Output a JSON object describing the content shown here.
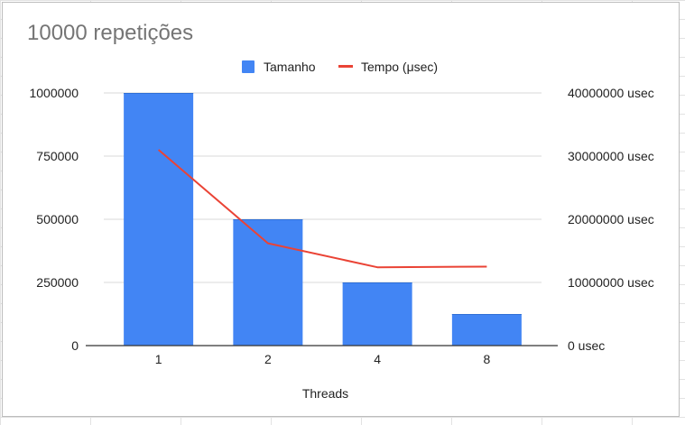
{
  "chart_data": {
    "type": "bar",
    "title": "10000 repetições",
    "xlabel": "Threads",
    "ylabel": "",
    "ylabel_right": "",
    "categories": [
      "1",
      "2",
      "4",
      "8"
    ],
    "series": [
      {
        "name": "Tamanho",
        "type": "bar",
        "axis": "left",
        "color": "#4285f4",
        "values": [
          1000000,
          500000,
          250000,
          125000
        ]
      },
      {
        "name": "Tempo (μsec)",
        "type": "line",
        "axis": "right",
        "color": "#ea4335",
        "values": [
          31000000,
          16200000,
          12400000,
          12500000
        ]
      }
    ],
    "ylim": [
      0,
      1000000
    ],
    "yticks": [
      "0",
      "250000",
      "500000",
      "750000",
      "1000000"
    ],
    "ylim_right": [
      0,
      40000000
    ],
    "yticks_right": [
      "0 usec",
      "10000000 usec",
      "20000000 usec",
      "30000000 usec",
      "40000000 usec"
    ],
    "legend_position": "top",
    "grid": true
  }
}
